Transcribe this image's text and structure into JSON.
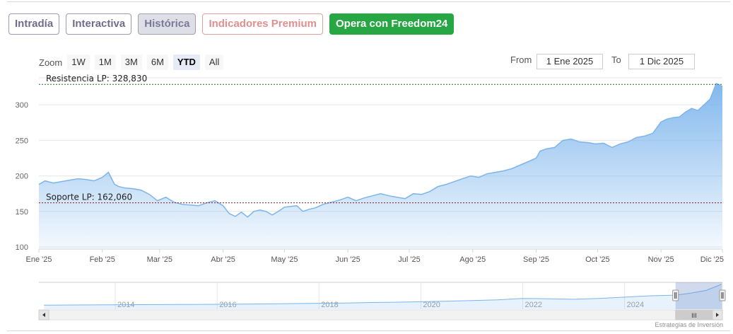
{
  "tabs": [
    {
      "label": "Intradía"
    },
    {
      "label": "Interactiva"
    },
    {
      "label": "Histórica"
    },
    {
      "label": "Indicadores Premium"
    },
    {
      "label": "Opera con Freedom24"
    }
  ],
  "range_selector": {
    "zoom_label": "Zoom",
    "buttons": [
      "1W",
      "1M",
      "3M",
      "6M",
      "YTD",
      "All"
    ],
    "selected": "YTD",
    "from_label": "From",
    "from_value": "1 Ene 2025",
    "to_label": "To",
    "to_value": "1 Dic 2025"
  },
  "colors": {
    "line": "#7cb5ec",
    "resistance": "#1e6e1e",
    "support": "#8b1a1a"
  },
  "chart_data": {
    "type": "area",
    "title": "",
    "xlabel": "",
    "ylabel": "",
    "ylim": [
      97,
      338
    ],
    "xlim": [
      "2025-01-01",
      "2025-12-01"
    ],
    "yticks": [
      100,
      150,
      200,
      250,
      300
    ],
    "xticks": [
      {
        "date": "2025-01-01",
        "label": "Ene '25"
      },
      {
        "date": "2025-02-01",
        "label": "Feb '25"
      },
      {
        "date": "2025-03-01",
        "label": "Mar '25"
      },
      {
        "date": "2025-04-01",
        "label": "Abr '25"
      },
      {
        "date": "2025-05-01",
        "label": "May '25"
      },
      {
        "date": "2025-06-01",
        "label": "Jun '25"
      },
      {
        "date": "2025-07-01",
        "label": "Jul '25"
      },
      {
        "date": "2025-08-01",
        "label": "Ago '25"
      },
      {
        "date": "2025-09-01",
        "label": "Sep '25"
      },
      {
        "date": "2025-10-01",
        "label": "Oct '25"
      },
      {
        "date": "2025-11-01",
        "label": "Nov '25"
      },
      {
        "date": "2025-12-01",
        "label": "Dic '25"
      }
    ],
    "grid": true,
    "legend": "none",
    "series": [
      {
        "x": [
          "2025-01-01",
          "2025-01-04",
          "2025-01-08",
          "2025-01-12",
          "2025-01-16",
          "2025-01-20",
          "2025-01-24",
          "2025-01-28",
          "2025-02-01",
          "2025-02-04",
          "2025-02-07",
          "2025-02-09",
          "2025-02-12",
          "2025-02-16",
          "2025-02-20",
          "2025-02-24",
          "2025-02-28",
          "2025-03-04",
          "2025-03-08",
          "2025-03-12",
          "2025-03-16",
          "2025-03-20",
          "2025-03-24",
          "2025-03-28",
          "2025-04-01",
          "2025-04-04",
          "2025-04-07",
          "2025-04-10",
          "2025-04-13",
          "2025-04-16",
          "2025-04-19",
          "2025-04-22",
          "2025-04-25",
          "2025-04-28",
          "2025-05-01",
          "2025-05-04",
          "2025-05-07",
          "2025-05-10",
          "2025-05-13",
          "2025-05-16",
          "2025-05-20",
          "2025-05-24",
          "2025-05-28",
          "2025-06-01",
          "2025-06-05",
          "2025-06-09",
          "2025-06-13",
          "2025-06-17",
          "2025-06-21",
          "2025-06-25",
          "2025-06-29",
          "2025-07-03",
          "2025-07-07",
          "2025-07-11",
          "2025-07-15",
          "2025-07-19",
          "2025-07-23",
          "2025-07-27",
          "2025-07-31",
          "2025-08-04",
          "2025-08-08",
          "2025-08-12",
          "2025-08-16",
          "2025-08-20",
          "2025-08-24",
          "2025-08-28",
          "2025-09-01",
          "2025-09-03",
          "2025-09-06",
          "2025-09-10",
          "2025-09-14",
          "2025-09-18",
          "2025-09-22",
          "2025-09-26",
          "2025-09-30",
          "2025-10-04",
          "2025-10-08",
          "2025-10-12",
          "2025-10-16",
          "2025-10-20",
          "2025-10-24",
          "2025-10-28",
          "2025-11-01",
          "2025-11-04",
          "2025-11-07",
          "2025-11-10",
          "2025-11-13",
          "2025-11-16",
          "2025-11-19",
          "2025-11-22",
          "2025-11-25",
          "2025-11-28",
          "2025-12-01"
        ],
        "values": [
          188,
          193,
          190,
          192,
          194,
          196,
          195,
          193,
          198,
          205,
          188,
          185,
          183,
          182,
          180,
          174,
          165,
          170,
          163,
          160,
          159,
          158,
          162,
          165,
          158,
          147,
          143,
          149,
          142,
          150,
          152,
          150,
          145,
          150,
          156,
          157,
          158,
          150,
          153,
          155,
          160,
          163,
          166,
          170,
          165,
          169,
          172,
          175,
          172,
          170,
          168,
          175,
          174,
          178,
          185,
          188,
          192,
          196,
          200,
          198,
          203,
          205,
          207,
          210,
          215,
          220,
          225,
          235,
          238,
          240,
          250,
          252,
          248,
          247,
          245,
          246,
          240,
          245,
          248,
          254,
          256,
          260,
          276,
          280,
          282,
          283,
          290,
          295,
          292,
          300,
          308,
          330,
          326
        ]
      }
    ],
    "annotations": [
      {
        "label": "Resistencia LP: 328,830",
        "value": 328.83
      },
      {
        "label": "Soporte LP: 162,060",
        "value": 162.06
      }
    ],
    "navigator": {
      "xlim": [
        2012.5,
        2025.92
      ],
      "xticks": [
        {
          "year": 2014,
          "label": "2014"
        },
        {
          "year": 2016,
          "label": "2016"
        },
        {
          "year": 2018,
          "label": "2018"
        },
        {
          "year": 2020,
          "label": "2020"
        },
        {
          "year": 2022,
          "label": "2022"
        },
        {
          "year": 2024,
          "label": "2024"
        }
      ],
      "years": [
        2012.6,
        2013.5,
        2014.5,
        2015.5,
        2016.5,
        2017.5,
        2018.5,
        2019.0,
        2019.5,
        2020.0,
        2020.5,
        2021.0,
        2021.5,
        2022.0,
        2022.5,
        2023.0,
        2023.5,
        2024.0,
        2024.5,
        2025.0,
        2025.3,
        2025.6,
        2025.9
      ],
      "values": [
        30,
        32,
        34,
        36,
        38,
        42,
        46,
        50,
        52,
        56,
        60,
        64,
        70,
        80,
        78,
        74,
        80,
        90,
        100,
        105,
        120,
        140,
        185
      ],
      "selection": [
        2025.0,
        2025.92
      ],
      "scroll_label": "III"
    }
  },
  "credit": "Estrategias de Inversión"
}
